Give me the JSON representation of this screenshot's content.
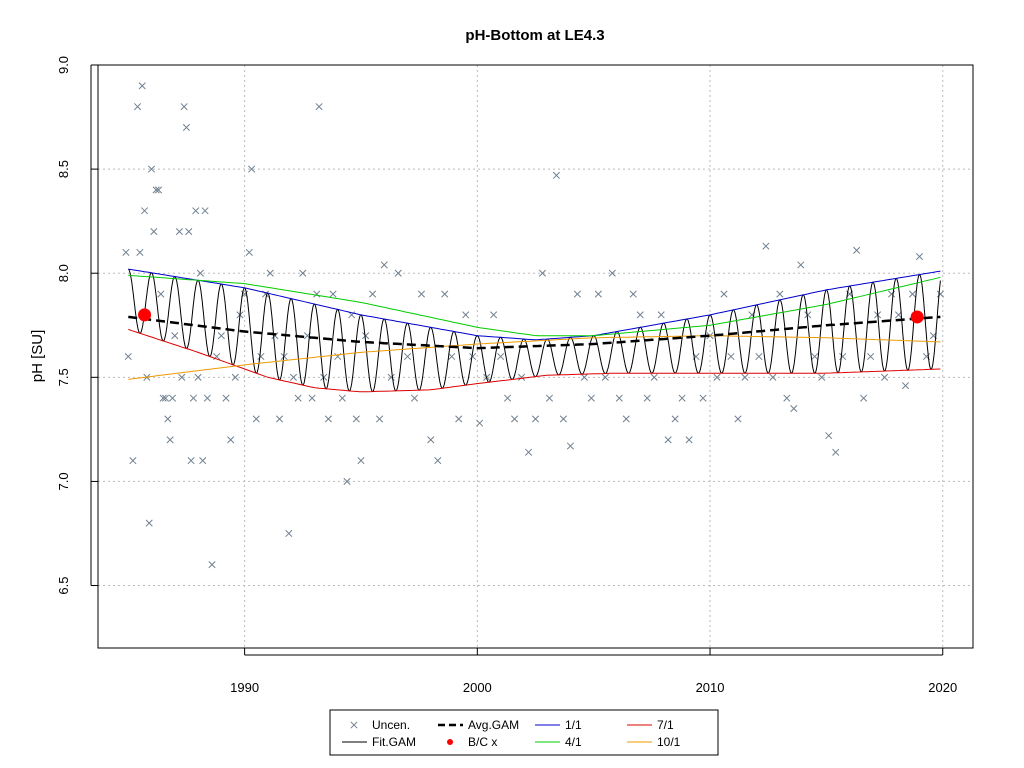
{
  "chart_data": {
    "type": "scatter",
    "title": "pH-Bottom at LE4.3",
    "xlabel": "",
    "ylabel": "pH [SU]",
    "xlim": [
      1983.7,
      2021.3
    ],
    "ylim": [
      6.2,
      9.0
    ],
    "x_ticks": [
      "1990",
      "2000",
      "2010",
      "2020"
    ],
    "x_tick_values": [
      1990,
      2000,
      2010,
      2020
    ],
    "y_ticks": [
      "6.5",
      "7.0",
      "7.5",
      "8.0",
      "8.5",
      "9.0"
    ],
    "y_tick_values": [
      6.5,
      7.0,
      7.5,
      8.0,
      8.5,
      9.0
    ],
    "grid": true,
    "legend_position": "bottom",
    "legend": [
      {
        "label": "Uncen.",
        "symbol": "x",
        "color": "#708090"
      },
      {
        "label": "Avg.GAM",
        "symbol": "dash",
        "color": "#000000"
      },
      {
        "label": "1/1",
        "symbol": "line",
        "color": "#0000cd"
      },
      {
        "label": "7/1",
        "symbol": "line",
        "color": "#dd0000"
      },
      {
        "label": "Fit.GAM",
        "symbol": "line",
        "color": "#000000"
      },
      {
        "label": "B/C x",
        "symbol": "dot",
        "color": "#ff0000"
      },
      {
        "label": "4/1",
        "symbol": "line",
        "color": "#00cc00"
      },
      {
        "label": "10/1",
        "symbol": "line",
        "color": "#ee9a00"
      }
    ],
    "series": [
      {
        "name": "Uncen.",
        "kind": "scatter",
        "color": "#708090",
        "x": [
          1984.9,
          1985.0,
          1985.2,
          1985.4,
          1985.5,
          1985.6,
          1985.7,
          1985.8,
          1985.9,
          1986.0,
          1986.1,
          1986.2,
          1986.3,
          1986.4,
          1986.5,
          1986.6,
          1986.7,
          1986.8,
          1986.9,
          1987.0,
          1987.2,
          1987.3,
          1987.4,
          1987.5,
          1987.6,
          1987.7,
          1987.8,
          1987.9,
          1988.0,
          1988.1,
          1988.2,
          1988.3,
          1988.4,
          1988.6,
          1988.8,
          1989.0,
          1989.2,
          1989.4,
          1989.6,
          1989.8,
          1990.0,
          1990.2,
          1990.3,
          1990.5,
          1990.7,
          1990.9,
          1991.1,
          1991.3,
          1991.5,
          1991.7,
          1991.9,
          1992.1,
          1992.3,
          1992.5,
          1992.7,
          1992.9,
          1993.1,
          1993.2,
          1993.4,
          1993.6,
          1993.8,
          1994.0,
          1994.2,
          1994.4,
          1994.6,
          1994.8,
          1995.0,
          1995.2,
          1995.5,
          1995.8,
          1996.0,
          1996.3,
          1996.6,
          1997.0,
          1997.3,
          1997.6,
          1998.0,
          1998.3,
          1998.6,
          1998.9,
          1999.2,
          1999.5,
          1999.8,
          2000.1,
          2000.4,
          2000.7,
          2001.0,
          2001.3,
          2001.6,
          2001.9,
          2002.2,
          2002.5,
          2002.8,
          2003.1,
          2003.4,
          2003.7,
          2004.0,
          2004.3,
          2004.6,
          2004.9,
          2005.2,
          2005.5,
          2005.8,
          2006.1,
          2006.4,
          2006.7,
          2007.0,
          2007.3,
          2007.6,
          2007.9,
          2008.2,
          2008.5,
          2008.8,
          2009.1,
          2009.4,
          2009.7,
          2010.0,
          2010.3,
          2010.6,
          2010.9,
          2011.2,
          2011.5,
          2011.8,
          2012.1,
          2012.4,
          2012.7,
          2013.0,
          2013.3,
          2013.6,
          2013.9,
          2014.2,
          2014.5,
          2014.8,
          2015.1,
          2015.4,
          2015.7,
          2016.0,
          2016.3,
          2016.6,
          2016.9,
          2017.2,
          2017.5,
          2017.8,
          2018.1,
          2018.4,
          2018.7,
          2019.0,
          2019.3,
          2019.6,
          2019.9
        ],
        "y": [
          8.1,
          7.6,
          7.1,
          8.8,
          8.1,
          8.9,
          8.3,
          7.5,
          6.8,
          8.5,
          8.2,
          8.4,
          8.4,
          7.9,
          7.4,
          7.4,
          7.3,
          7.2,
          7.4,
          7.7,
          8.2,
          7.5,
          8.8,
          8.7,
          8.2,
          7.1,
          7.4,
          8.3,
          7.5,
          8.0,
          7.1,
          8.3,
          7.4,
          6.6,
          7.6,
          7.7,
          7.4,
          7.2,
          7.5,
          7.8,
          7.9,
          8.1,
          8.5,
          7.3,
          7.6,
          7.9,
          8.0,
          7.7,
          7.3,
          7.6,
          6.75,
          7.5,
          7.4,
          8.0,
          7.7,
          7.4,
          7.9,
          8.8,
          7.5,
          7.3,
          7.9,
          7.6,
          7.4,
          7.0,
          7.8,
          7.3,
          7.1,
          7.7,
          7.9,
          7.3,
          8.04,
          7.5,
          8.0,
          7.6,
          7.4,
          7.9,
          7.2,
          7.1,
          7.9,
          7.6,
          7.3,
          7.8,
          7.6,
          7.28,
          7.5,
          7.8,
          7.6,
          7.4,
          7.3,
          7.5,
          7.14,
          7.3,
          8.0,
          7.4,
          8.47,
          7.3,
          7.17,
          7.9,
          7.5,
          7.4,
          7.9,
          7.5,
          8.0,
          7.4,
          7.3,
          7.9,
          7.8,
          7.4,
          7.5,
          7.8,
          7.2,
          7.3,
          7.4,
          7.2,
          7.6,
          7.4,
          7.7,
          7.5,
          7.9,
          7.6,
          7.3,
          7.5,
          7.8,
          7.6,
          8.13,
          7.5,
          7.9,
          7.4,
          7.35,
          8.04,
          7.8,
          7.6,
          7.5,
          7.22,
          7.14,
          7.6,
          7.9,
          8.11,
          7.4,
          7.6,
          7.8,
          7.5,
          7.9,
          7.8,
          7.46,
          7.9,
          8.08,
          7.6,
          7.7,
          7.9
        ]
      },
      {
        "name": "Fit.GAM",
        "kind": "seasonal_line",
        "color": "#000000",
        "x_range": [
          1985.0,
          2019.9
        ],
        "period": 1.0
      },
      {
        "name": "Avg.GAM",
        "kind": "line",
        "color": "#000000",
        "x": [
          1985.0,
          1990.0,
          1995.0,
          2000.0,
          2005.0,
          2010.0,
          2015.0,
          2019.9
        ],
        "y": [
          7.79,
          7.72,
          7.67,
          7.64,
          7.66,
          7.7,
          7.75,
          7.79
        ]
      },
      {
        "name": "1/1",
        "kind": "line",
        "color": "#0000cd",
        "x": [
          1985.0,
          1990.0,
          1995.0,
          2000.0,
          2002.5,
          2005.0,
          2010.0,
          2015.0,
          2019.9
        ],
        "y": [
          8.02,
          7.93,
          7.8,
          7.7,
          7.68,
          7.7,
          7.8,
          7.92,
          8.01
        ]
      },
      {
        "name": "4/1",
        "kind": "line",
        "color": "#00cc00",
        "x": [
          1985.0,
          1990.0,
          1995.0,
          2000.0,
          2002.5,
          2005.0,
          2010.0,
          2015.0,
          2019.9
        ],
        "y": [
          7.99,
          7.95,
          7.86,
          7.74,
          7.7,
          7.7,
          7.75,
          7.85,
          7.98
        ]
      },
      {
        "name": "7/1",
        "kind": "line",
        "color": "#dd0000",
        "x": [
          1985.0,
          1988.0,
          1991.0,
          1993.0,
          1995.0,
          1998.0,
          2000.0,
          2003.0,
          2006.0,
          2010.0,
          2015.0,
          2019.9
        ],
        "y": [
          7.73,
          7.62,
          7.5,
          7.45,
          7.43,
          7.44,
          7.47,
          7.51,
          7.52,
          7.52,
          7.52,
          7.54
        ]
      },
      {
        "name": "10/1",
        "kind": "line",
        "color": "#ee9a00",
        "x": [
          1985.0,
          1990.0,
          1995.0,
          2000.0,
          2005.0,
          2010.0,
          2015.0,
          2019.9
        ],
        "y": [
          7.49,
          7.56,
          7.62,
          7.66,
          7.69,
          7.7,
          7.69,
          7.67
        ]
      },
      {
        "name": "B/C x",
        "kind": "points",
        "color": "#ff0000",
        "x": [
          1985.7,
          2018.9
        ],
        "y": [
          7.8,
          7.79
        ]
      }
    ]
  }
}
